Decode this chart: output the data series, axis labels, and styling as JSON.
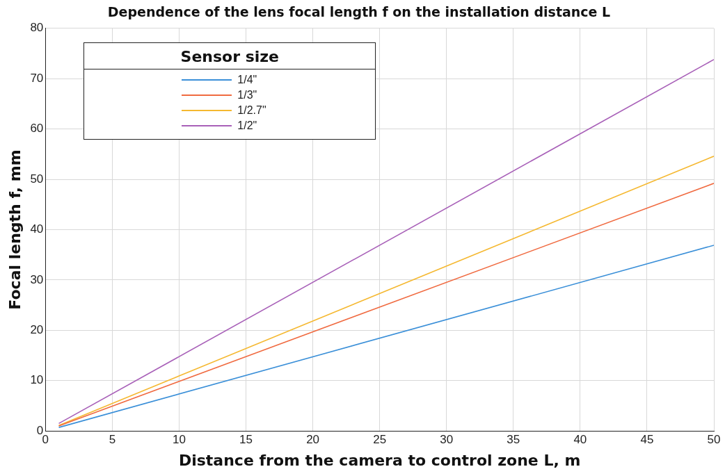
{
  "chart_data": {
    "type": "line",
    "title": "Dependence of the lens focal length f on the installation distance L",
    "xlabel": "Distance from the camera to control zone L, m",
    "ylabel": "Focal length f, mm",
    "legend_title": "Sensor size",
    "x": [
      1,
      50
    ],
    "series": [
      {
        "name": "1/4\"",
        "color": "#3a8fd8",
        "values": [
          0.7,
          36.9
        ]
      },
      {
        "name": "1/3\"",
        "color": "#f06a40",
        "values": [
          1.0,
          49.2
        ]
      },
      {
        "name": "1/2.7\"",
        "color": "#f5b830",
        "values": [
          1.1,
          54.6
        ]
      },
      {
        "name": "1/2\"",
        "color": "#a860b8",
        "values": [
          1.5,
          73.8
        ]
      }
    ],
    "xlim": [
      0,
      50
    ],
    "xticks": [
      0,
      5,
      10,
      15,
      20,
      25,
      30,
      35,
      40,
      45,
      50
    ],
    "ylim": [
      0,
      80
    ],
    "yticks": [
      0,
      10,
      20,
      30,
      40,
      50,
      60,
      70,
      80
    ],
    "grid": true,
    "legend": "top left",
    "marker": "none",
    "line_style": "solid"
  }
}
